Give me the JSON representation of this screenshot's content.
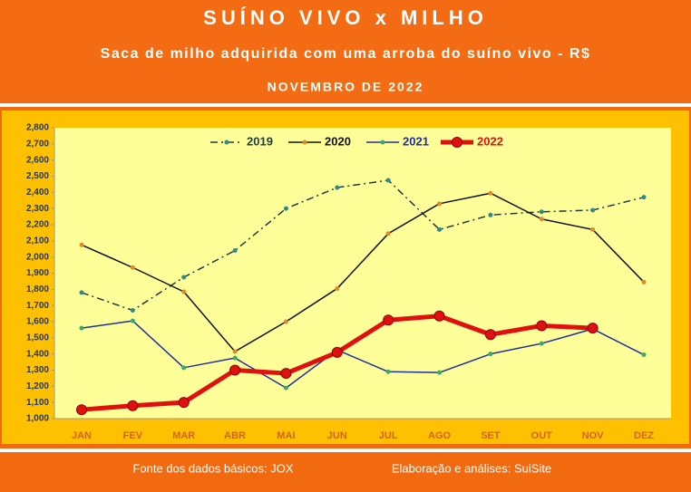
{
  "chart_data": {
    "type": "line",
    "title": "SUÍNO VIVO x MILHO",
    "subtitle": "Saca de milho adquirida com uma arroba do suíno vivo - R$",
    "date_label": "NOVEMBRO DE 2022",
    "source": "Fonte dos dados básicos: JOX",
    "credit": "Elaboração e análises: SuiSite",
    "categories": [
      "JAN",
      "FEV",
      "MAR",
      "ABR",
      "MAI",
      "JUN",
      "JUL",
      "AGO",
      "SET",
      "OUT",
      "NOV",
      "DEZ"
    ],
    "series": [
      {
        "name": "2019",
        "color": "#1e3b3b",
        "marker_color": "#2e8b8b",
        "dash": "dashdot",
        "width": 1.5,
        "values": [
          1780,
          1670,
          1875,
          2040,
          2300,
          2430,
          2475,
          2170,
          2260,
          2280,
          2290,
          2370
        ]
      },
      {
        "name": "2020",
        "color": "#111111",
        "marker_color": "#e08a2a",
        "dash": "solid",
        "width": 1.5,
        "values": [
          2075,
          1935,
          1785,
          1415,
          1600,
          1805,
          2145,
          2330,
          2395,
          2235,
          2170,
          1845
        ]
      },
      {
        "name": "2021",
        "color": "#1f2fa0",
        "marker_color": "#3aaa6a",
        "dash": "solid",
        "width": 1.5,
        "values": [
          1560,
          1605,
          1315,
          1375,
          1190,
          1425,
          1290,
          1285,
          1400,
          1465,
          1555,
          1395
        ]
      },
      {
        "name": "2022",
        "color": "#e01010",
        "marker_color": "#e01010",
        "dash": "solid",
        "width": 5,
        "values": [
          1055,
          1080,
          1100,
          1300,
          1280,
          1410,
          1610,
          1635,
          1520,
          1575,
          1560,
          null
        ]
      }
    ],
    "ylim": [
      1000,
      2800
    ],
    "yticks": [
      {
        "value": 1000,
        "label": "1,000"
      },
      {
        "value": 1100,
        "label": "1,100"
      },
      {
        "value": 1200,
        "label": "1,200"
      },
      {
        "value": 1300,
        "label": "1,300"
      },
      {
        "value": 1400,
        "label": "1,400"
      },
      {
        "value": 1500,
        "label": "1,500"
      },
      {
        "value": 1600,
        "label": "1,600"
      },
      {
        "value": 1700,
        "label": "1,700"
      },
      {
        "value": 1800,
        "label": "1,800"
      },
      {
        "value": 1900,
        "label": "1,900"
      },
      {
        "value": 2000,
        "label": "2,000"
      },
      {
        "value": 2100,
        "label": "2,100"
      },
      {
        "value": 2200,
        "label": "2,200"
      },
      {
        "value": 2300,
        "label": "2,300"
      },
      {
        "value": 2400,
        "label": "2,400"
      },
      {
        "value": 2500,
        "label": "2,500"
      },
      {
        "value": 2600,
        "label": "2,600"
      },
      {
        "value": 2700,
        "label": "2,700"
      },
      {
        "value": 2800,
        "label": "2,800"
      }
    ],
    "grid": false,
    "legend": "top"
  }
}
